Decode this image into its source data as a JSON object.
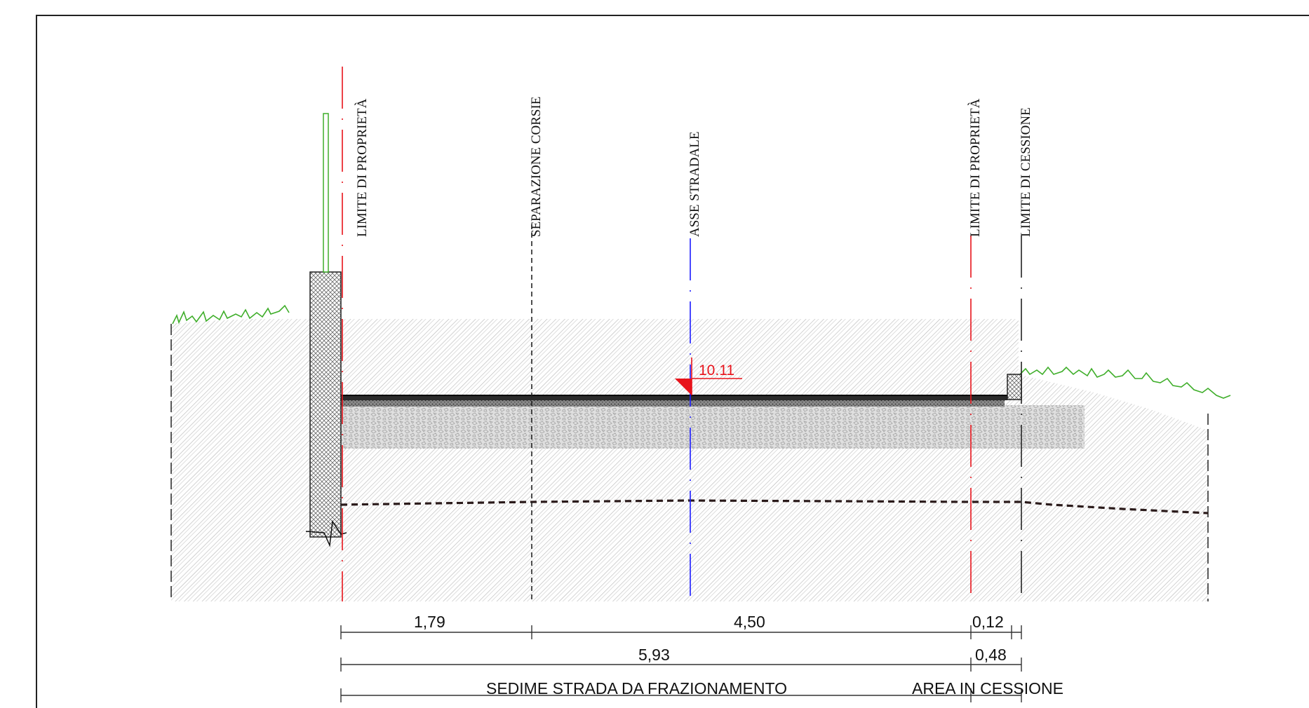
{
  "colors": {
    "property_line": "#e8131b",
    "road_axis": "#1a1aff",
    "elevation_marker": "#e8131b",
    "grass": "#3fae2a",
    "fence": "#3fae2a",
    "ground_hatch": "#bdbdbd",
    "asphalt": "#3a3a3a",
    "gravel": "#c7c7c7"
  },
  "axis_labels": {
    "left_property_limit": "LIMITE DI PROPRIETÀ",
    "lane_separation": "SEPARAZIONE CORSIE",
    "road_axis": "ASSE STRADALE",
    "right_property_limit": "LIMITE DI PROPRIETÀ",
    "cession_limit": "LIMITE DI CESSIONE"
  },
  "elevation": {
    "value": "10.11",
    "icon": "elevation-triangle-icon"
  },
  "dimensions": {
    "row1": [
      "1,79",
      "4,50",
      "0,12"
    ],
    "row2": [
      "5,93",
      "0,48"
    ],
    "row3": [
      "SEDIME STRADA DA FRAZIONAMENTO",
      "AREA IN CESSIONE"
    ]
  }
}
